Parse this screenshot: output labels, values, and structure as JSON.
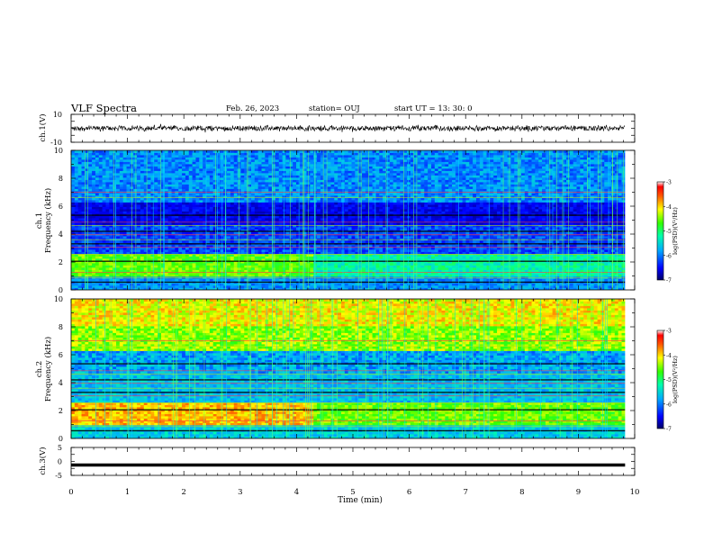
{
  "header": {
    "title": "VLF Spectra",
    "date": "Feb. 26, 2023",
    "station": "station= OUJ",
    "start_ut": "start  UT  =   13: 30: 0"
  },
  "chart_data": [
    {
      "type": "line",
      "panel": "ch1-waveform",
      "ylabel": "ch.1(V)",
      "ylim": [
        -10,
        10
      ],
      "yticks": [
        "10",
        "-10"
      ],
      "xlim": [
        0,
        10
      ],
      "color": "#000000",
      "series": [
        {
          "values_description_free": true,
          "mean": 0,
          "amplitude": 2
        }
      ]
    },
    {
      "type": "heatmap",
      "panel": "ch1-spectrogram",
      "ylabel_channel": "ch.1",
      "ylabel": "Frequency  (kHz)",
      "ylim": [
        0,
        10
      ],
      "yticks": [
        "0",
        "2",
        "4",
        "6",
        "8",
        "10"
      ],
      "xlim": [
        0,
        10
      ],
      "data_extent_min": 9.83,
      "colorbar": {
        "label": "log(PSD)(V²/Hz)",
        "range": [
          -7,
          -3
        ],
        "ticks": [
          "-3",
          "-4",
          "-5",
          "-6",
          "-7"
        ]
      }
    },
    {
      "type": "heatmap",
      "panel": "ch2-spectrogram",
      "ylabel_channel": "ch.2",
      "ylabel": "Frequency  (kHz)",
      "ylim": [
        0,
        10
      ],
      "yticks": [
        "0",
        "2",
        "4",
        "6",
        "8",
        "10"
      ],
      "xlim": [
        0,
        10
      ],
      "data_extent_min": 9.83,
      "colorbar": {
        "label": "log(PSD)(V²/Hz)",
        "range": [
          -7,
          -3
        ],
        "ticks": [
          "-3",
          "-4",
          "-5",
          "-6",
          "-7"
        ]
      }
    },
    {
      "type": "line",
      "panel": "ch3-waveform",
      "ylabel": "ch.3(V)",
      "ylim": [
        -5,
        5
      ],
      "yticks": [
        "5",
        "0",
        "-5"
      ],
      "xlim": [
        0,
        10
      ],
      "level": -1.3,
      "color": "#000000"
    }
  ],
  "xaxis": {
    "label": "Time  (min)",
    "ticks": [
      "0",
      "1",
      "2",
      "3",
      "4",
      "5",
      "6",
      "7",
      "8",
      "9",
      "10"
    ]
  }
}
